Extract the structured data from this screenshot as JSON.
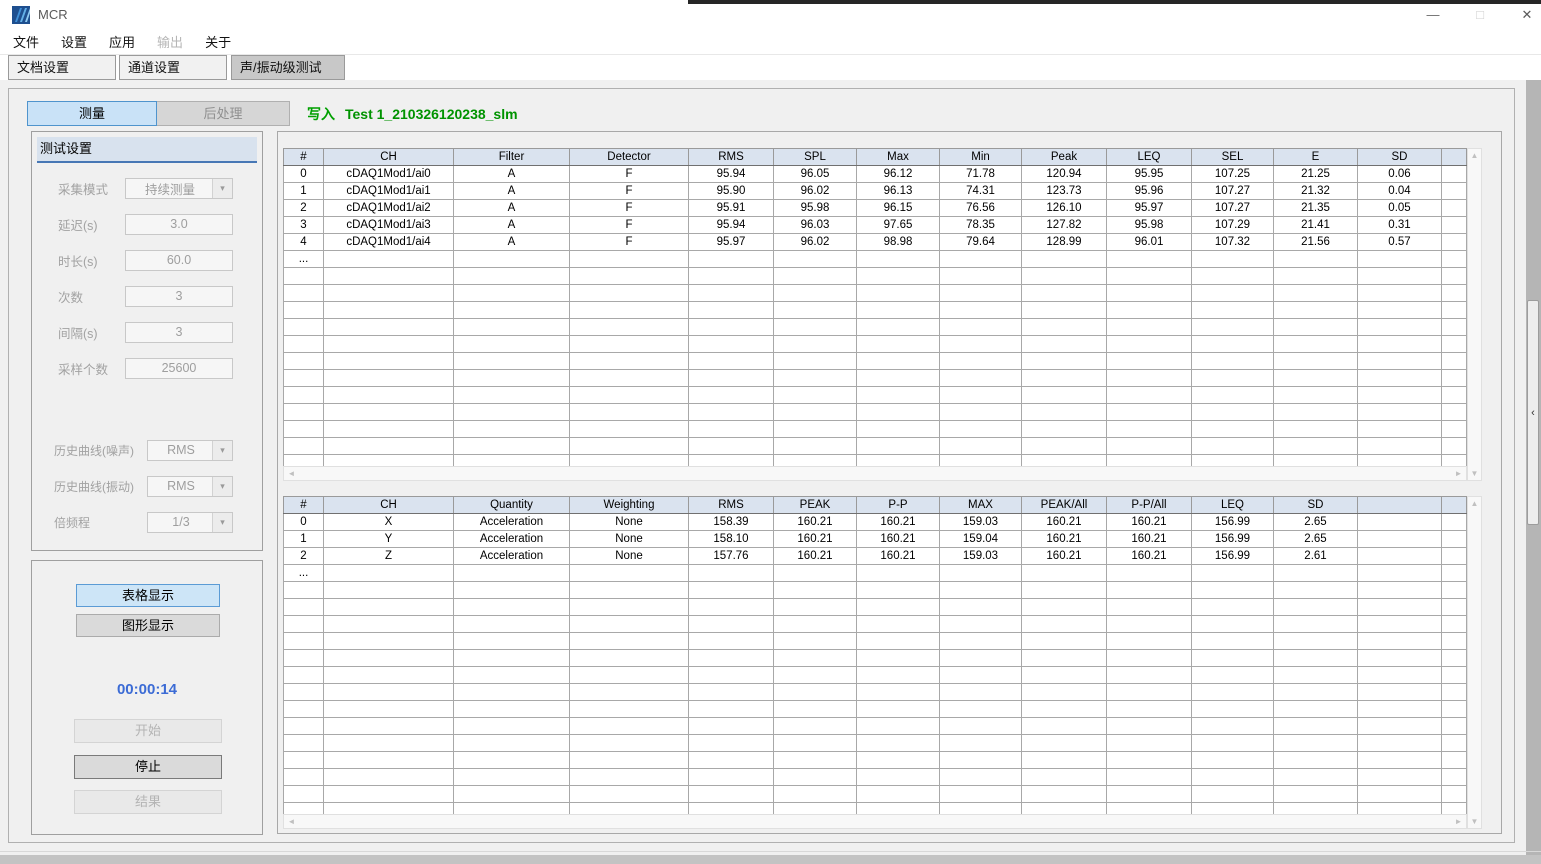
{
  "window": {
    "title": "MCR"
  },
  "icons": {
    "minimize": "—",
    "maximize": "□",
    "close": "✕",
    "combo_chevron": "▾",
    "scroll_up": "▲",
    "scroll_down": "▼",
    "scroll_left": "◄",
    "scroll_right": "►",
    "collapse_left": "‹"
  },
  "colors": {
    "accent_blue_button": "#c9e2f7",
    "accent_blue_border": "#4f94cd",
    "header_band": "#d8e2ee",
    "header_underline": "#4777b5",
    "success_green": "#00a000",
    "timer_blue": "#3b6bd5"
  },
  "menu": {
    "items": [
      {
        "label": "文件",
        "enabled": true
      },
      {
        "label": "设置",
        "enabled": true
      },
      {
        "label": "应用",
        "enabled": true
      },
      {
        "label": "输出",
        "enabled": false
      },
      {
        "label": "关于",
        "enabled": true
      }
    ]
  },
  "tabs": [
    {
      "label": "文档设置",
      "active": false
    },
    {
      "label": "通道设置",
      "active": false
    },
    {
      "label": "声/振动级测试",
      "active": true
    }
  ],
  "toolbar": {
    "measure": "测量",
    "postprocess": "后处理",
    "write_label": "写入",
    "session_name": "Test 1_210326120238_slm"
  },
  "settings": {
    "title": "测试设置",
    "fields": [
      {
        "name": "acquisition-mode",
        "label": "采集模式",
        "value": "持续测量",
        "type": "combo"
      },
      {
        "name": "delay",
        "label": "延迟(s)",
        "value": "3.0",
        "type": "text"
      },
      {
        "name": "duration",
        "label": "时长(s)",
        "value": "60.0",
        "type": "text"
      },
      {
        "name": "times",
        "label": "次数",
        "value": "3",
        "type": "text"
      },
      {
        "name": "interval",
        "label": "间隔(s)",
        "value": "3",
        "type": "text"
      },
      {
        "name": "sample-count",
        "label": "采样个数",
        "value": "25600",
        "type": "text"
      },
      {
        "name": "history-curve-noise",
        "label": "历史曲线(噪声)",
        "value": "RMS",
        "type": "combo"
      },
      {
        "name": "history-curve-vibration",
        "label": "历史曲线(振动)",
        "value": "RMS",
        "type": "combo"
      },
      {
        "name": "octave",
        "label": "倍频程",
        "value": "1/3",
        "type": "combo"
      }
    ]
  },
  "controls": {
    "table_display": "表格显示",
    "graph_display": "图形显示",
    "timer": "00:00:14",
    "start": "开始",
    "stop": "停止",
    "result": "结果"
  },
  "sound_table": {
    "headers": [
      "#",
      "CH",
      "Filter",
      "Detector",
      "RMS",
      "SPL",
      "Max",
      "Min",
      "Peak",
      "LEQ",
      "SEL",
      "E",
      "SD",
      ""
    ],
    "rows": [
      [
        "0",
        "cDAQ1Mod1/ai0",
        "A",
        "F",
        "95.94",
        "96.05",
        "96.12",
        "71.78",
        "120.94",
        "95.95",
        "107.25",
        "21.25",
        "0.06"
      ],
      [
        "1",
        "cDAQ1Mod1/ai1",
        "A",
        "F",
        "95.90",
        "96.02",
        "96.13",
        "74.31",
        "123.73",
        "95.96",
        "107.27",
        "21.32",
        "0.04"
      ],
      [
        "2",
        "cDAQ1Mod1/ai2",
        "A",
        "F",
        "95.91",
        "95.98",
        "96.15",
        "76.56",
        "126.10",
        "95.97",
        "107.27",
        "21.35",
        "0.05"
      ],
      [
        "3",
        "cDAQ1Mod1/ai3",
        "A",
        "F",
        "95.94",
        "96.03",
        "97.65",
        "78.35",
        "127.82",
        "95.98",
        "107.29",
        "21.41",
        "0.31"
      ],
      [
        "4",
        "cDAQ1Mod1/ai4",
        "A",
        "F",
        "95.97",
        "96.02",
        "98.98",
        "79.64",
        "128.99",
        "96.01",
        "107.32",
        "21.56",
        "0.57"
      ],
      [
        "..."
      ]
    ]
  },
  "vibration_table": {
    "headers": [
      "#",
      "CH",
      "Quantity",
      "Weighting",
      "RMS",
      "PEAK",
      "P-P",
      "MAX",
      "PEAK/All",
      "P-P/All",
      "LEQ",
      "SD",
      "",
      ""
    ],
    "rows": [
      [
        "0",
        "X",
        "Acceleration",
        "None",
        "158.39",
        "160.21",
        "160.21",
        "159.03",
        "160.21",
        "160.21",
        "156.99",
        "2.65"
      ],
      [
        "1",
        "Y",
        "Acceleration",
        "None",
        "158.10",
        "160.21",
        "160.21",
        "159.04",
        "160.21",
        "160.21",
        "156.99",
        "2.65"
      ],
      [
        "2",
        "Z",
        "Acceleration",
        "None",
        "157.76",
        "160.21",
        "160.21",
        "159.03",
        "160.21",
        "160.21",
        "156.99",
        "2.61"
      ],
      [
        "..."
      ]
    ]
  }
}
